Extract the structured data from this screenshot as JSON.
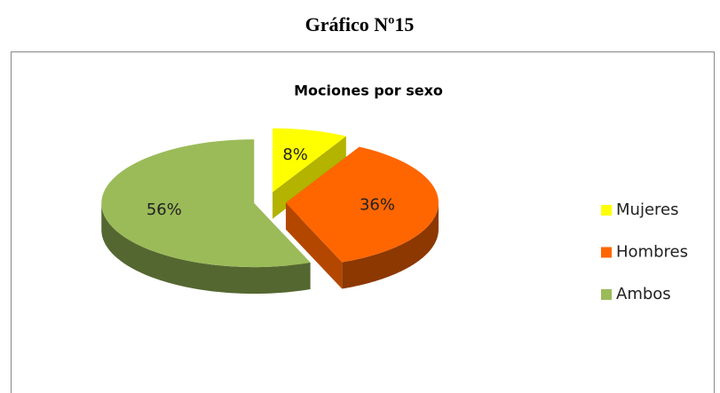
{
  "heading": "Gráfico Nº15",
  "chart_data": {
    "type": "pie",
    "title": "Mociones por sexo",
    "categories": [
      "Mujeres",
      "Hombres",
      "Ambos"
    ],
    "values": [
      8,
      36,
      56
    ],
    "value_labels": [
      "8%",
      "36%",
      "56%"
    ],
    "colors": [
      "#ffff00",
      "#ff6600",
      "#9bbb59"
    ],
    "legend": "right"
  }
}
